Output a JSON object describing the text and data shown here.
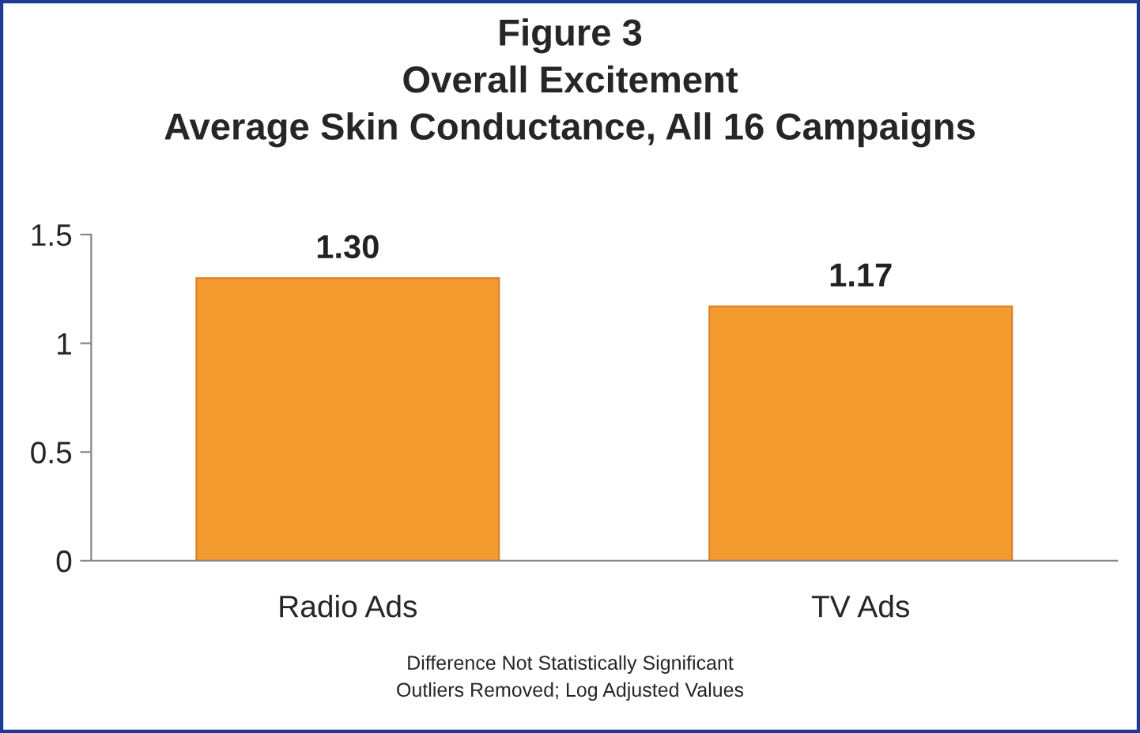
{
  "chart_data": {
    "type": "bar",
    "title": "Figure 3\nOverall Excitement\nAverage Skin Conductance, All 16 Campaigns",
    "categories": [
      "Radio Ads",
      "TV Ads"
    ],
    "values": [
      1.3,
      1.17
    ],
    "value_labels": [
      "1.30",
      "1.17"
    ],
    "color": "#f39b2f",
    "ylim": [
      0,
      1.5
    ],
    "yticks": [
      0,
      0.5,
      1,
      1.5
    ],
    "grid": false,
    "annotations": [
      "Difference Not Statistically Significant\nOutliers Removed; Log Adjusted Values"
    ]
  }
}
